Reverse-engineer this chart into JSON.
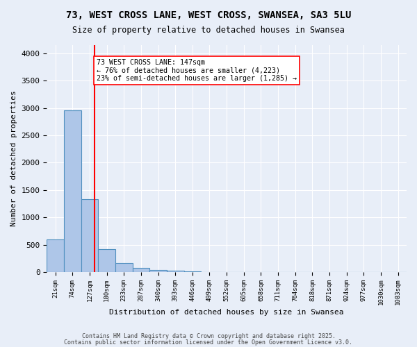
{
  "title": "73, WEST CROSS LANE, WEST CROSS, SWANSEA, SA3 5LU",
  "subtitle": "Size of property relative to detached houses in Swansea",
  "xlabel": "Distribution of detached houses by size in Swansea",
  "ylabel": "Number of detached properties",
  "bar_labels": [
    "21sqm",
    "74sqm",
    "127sqm",
    "180sqm",
    "233sqm",
    "287sqm",
    "340sqm",
    "393sqm",
    "446sqm",
    "499sqm",
    "552sqm",
    "605sqm",
    "658sqm",
    "711sqm",
    "764sqm",
    "818sqm",
    "871sqm",
    "924sqm",
    "977sqm",
    "1030sqm",
    "1083sqm"
  ],
  "bar_heights": [
    595,
    2960,
    1330,
    425,
    163,
    72,
    42,
    30,
    18,
    0,
    0,
    0,
    0,
    0,
    0,
    0,
    0,
    0,
    0,
    0,
    0
  ],
  "bar_color": "#aec6e8",
  "bar_edge_color": "#4f8fbf",
  "red_line_x": 2.27,
  "annotation_text": "73 WEST CROSS LANE: 147sqm\n← 76% of detached houses are smaller (4,223)\n23% of semi-detached houses are larger (1,285) →",
  "ylim": [
    0,
    4150
  ],
  "yticks": [
    0,
    500,
    1000,
    1500,
    2000,
    2500,
    3000,
    3500,
    4000
  ],
  "bg_color": "#e8eef8",
  "grid_color": "#ffffff",
  "footer_line1": "Contains HM Land Registry data © Crown copyright and database right 2025.",
  "footer_line2": "Contains public sector information licensed under the Open Government Licence v3.0."
}
